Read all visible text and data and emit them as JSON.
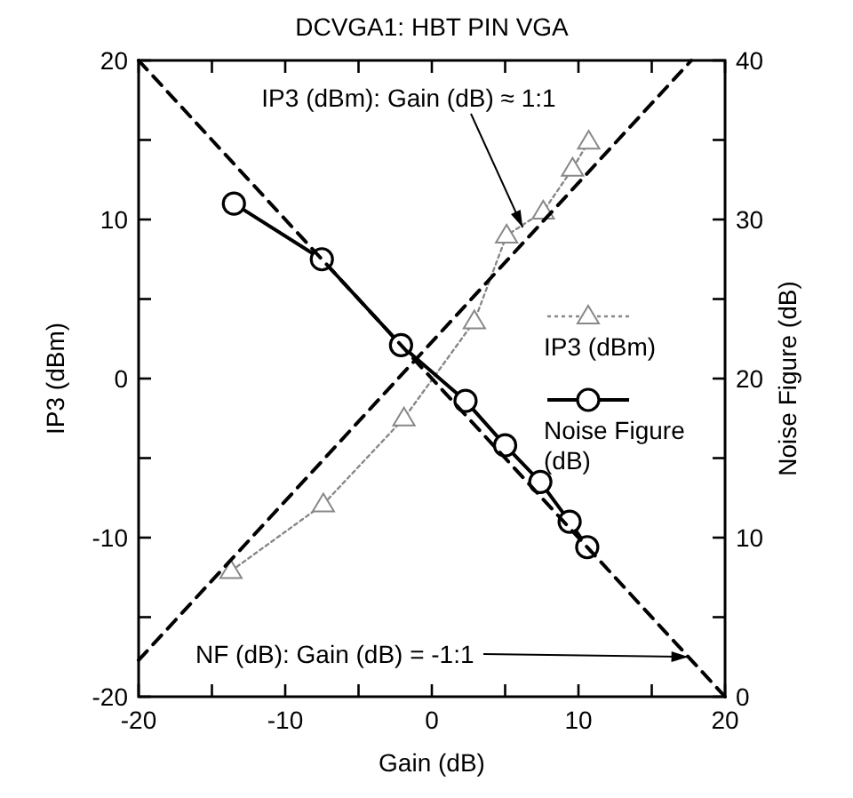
{
  "chart_data": {
    "type": "line",
    "title": "DCVGA1: HBT PIN VGA",
    "xlabel": "Gain (dB)",
    "ylabel": "IP3 (dBm)",
    "y2label": "Noise Figure (dB)",
    "xlim": [
      -20,
      20
    ],
    "xticks": [
      -20,
      {
        "value": -15,
        "label": null
      },
      -10,
      {
        "value": -5,
        "label": null
      },
      0,
      {
        "value": 5,
        "label": null
      },
      10,
      {
        "value": 15,
        "label": null
      },
      20
    ],
    "ylim": [
      -20,
      20
    ],
    "yticks": [
      -20,
      {
        "value": -15,
        "label": null
      },
      -10,
      {
        "value": -5,
        "label": null
      },
      0,
      {
        "value": 5,
        "label": null
      },
      10,
      {
        "value": 15,
        "label": null
      },
      20
    ],
    "y2lim": [
      0,
      40
    ],
    "y2ticks": [
      0,
      {
        "value": 5,
        "label": null
      },
      10,
      {
        "value": 15,
        "label": null
      },
      20,
      {
        "value": 25,
        "label": null
      },
      30,
      {
        "value": 35,
        "label": null
      },
      40
    ],
    "grid": false,
    "legend": "right",
    "series": [
      {
        "name": "IP3 (dBm)",
        "color": "#888888",
        "marker": "triangle",
        "line_style": "dotted",
        "x": [
          -13.7,
          -7.4,
          -1.9,
          2.9,
          5.1,
          7.6,
          9.6,
          10.7
        ],
        "values": [
          -12.1,
          -7.9,
          -2.5,
          3.6,
          9.0,
          10.5,
          13.2,
          14.9
        ]
      },
      {
        "name": "Noise Figure (dB)",
        "color": "#000000",
        "marker": "circle",
        "line_style": "solid",
        "axis": "y2",
        "x": [
          -13.5,
          -7.5,
          -2.1,
          2.3,
          5.0,
          7.4,
          9.4,
          10.6
        ],
        "values": [
          31,
          27.5,
          22.1,
          18.6,
          15.8,
          13.5,
          11,
          9.4
        ]
      },
      {
        "type": "line",
        "color": "#000000",
        "marker": "none",
        "line_style": "dashed",
        "x": [
          -20,
          17.7
        ],
        "values": [
          -17.7,
          20
        ]
      },
      {
        "type": "line",
        "color": "#000000",
        "marker": "none",
        "line_style": "dashed",
        "axis": "y2",
        "x": [
          -20,
          20
        ],
        "values": [
          40,
          0
        ]
      }
    ],
    "annotations": [
      {
        "text": "IP3 (dBm): Gain (dB) ≈ 1:1",
        "x": 6.2,
        "y": 9.5
      },
      {
        "text": "NF (dB): Gain (dB) = -1:1",
        "x": 17.5,
        "y": -17.5
      }
    ]
  }
}
